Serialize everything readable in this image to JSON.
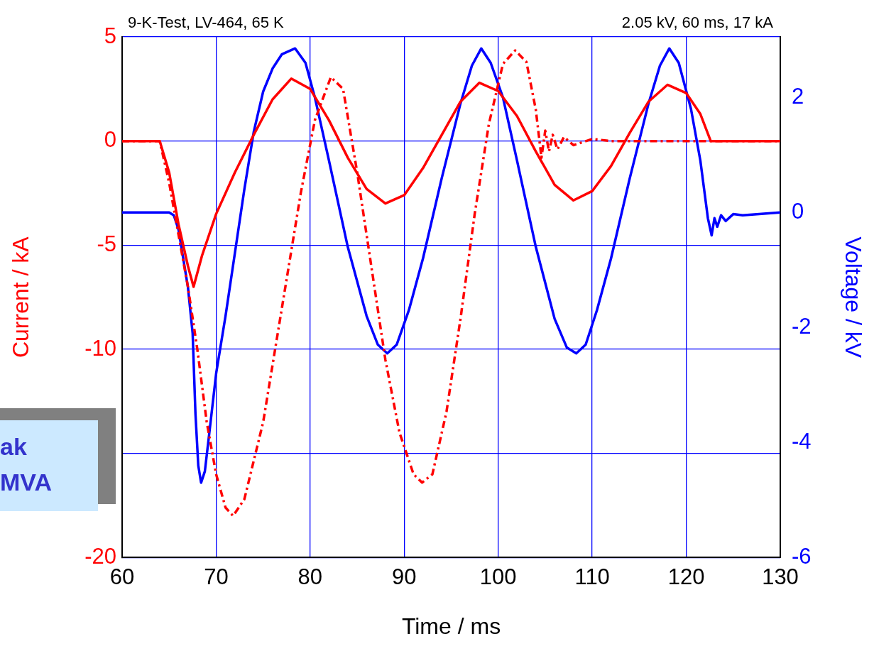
{
  "chart_data": {
    "type": "line",
    "title": "9-K-Test, LV-464, 65 K",
    "subtitle": "2.05 kV, 60 ms, 17 kA",
    "xlabel": "Time / ms",
    "ylabel": "Current / kA",
    "y2label": "Voltage / kV",
    "annotations": [
      "ak",
      "MVA"
    ],
    "xlim": [
      60,
      130
    ],
    "xticks": [
      60,
      70,
      80,
      90,
      100,
      110,
      120,
      130
    ],
    "ylim": [
      -20,
      5
    ],
    "yticks": [
      -20,
      {
        "value": -15,
        "label": null
      },
      -10,
      -5,
      0,
      5
    ],
    "y2lim": [
      -6,
      3.05
    ],
    "y2ticks": [
      -6,
      -4,
      -2,
      0,
      2
    ],
    "grid": true,
    "legend": false,
    "marker": "none",
    "series": [
      {
        "color": "#ff0000",
        "line_style": "solid",
        "x": [
          60,
          64,
          65,
          66,
          67,
          67.6,
          68.5,
          70,
          72,
          74,
          76,
          78,
          80,
          82,
          84,
          86,
          88,
          90,
          92,
          94,
          96,
          98,
          100,
          102,
          104,
          106,
          108,
          110,
          112,
          114,
          116,
          118,
          120,
          121.5,
          122.6,
          130
        ],
        "values": [
          0,
          0,
          -1.5,
          -4,
          -6,
          -7,
          -5.5,
          -3.5,
          -1.5,
          0.3,
          2,
          3,
          2.5,
          1,
          -0.8,
          -2.3,
          -3,
          -2.6,
          -1.3,
          0.3,
          1.9,
          2.8,
          2.4,
          1.2,
          -0.5,
          -2.1,
          -2.85,
          -2.4,
          -1.2,
          0.4,
          1.9,
          2.7,
          2.3,
          1.3,
          0,
          0
        ]
      },
      {
        "color": "#ff0000",
        "line_style": "dashed",
        "x": [
          60,
          64,
          65,
          66,
          67,
          68,
          69,
          70,
          71,
          71.8,
          73,
          75,
          77,
          79,
          80.5,
          82.2,
          83.5,
          85,
          86.5,
          88,
          89.5,
          91,
          91.9,
          93,
          94.5,
          96,
          97.5,
          99,
          100.5,
          101.8,
          103,
          104,
          104.6,
          105,
          105.4,
          105.8,
          106.3,
          107,
          108,
          110,
          112,
          130
        ],
        "values": [
          0,
          0,
          -2,
          -4.5,
          -7,
          -10,
          -13.5,
          -16,
          -17.6,
          -18,
          -17.2,
          -13.5,
          -8,
          -2.5,
          1,
          3.07,
          2.5,
          -1.5,
          -6,
          -10.5,
          -14,
          -16,
          -16.4,
          -16,
          -13,
          -8.5,
          -3.5,
          0.8,
          3.7,
          4.35,
          3.8,
          1.5,
          -0.8,
          0.5,
          -0.5,
          0.3,
          -0.4,
          0.2,
          -0.2,
          0.1,
          0,
          0
        ]
      },
      {
        "color": "#0000ff",
        "line_style": "solid",
        "axis": "y2",
        "x": [
          60,
          64,
          65,
          65.5,
          66,
          66.5,
          67,
          67.5,
          67.8,
          68.1,
          68.4,
          68.8,
          69.3,
          70,
          71,
          72,
          73,
          74,
          75,
          76,
          77,
          78.4,
          79.5,
          80.5,
          82,
          84,
          86,
          87.2,
          88.2,
          89.2,
          90.5,
          92,
          94,
          96,
          97.2,
          98.2,
          99.2,
          100.5,
          102,
          104,
          106,
          107.3,
          108.3,
          109.3,
          110.5,
          112,
          114,
          116,
          117.2,
          118.2,
          119.2,
          120.5,
          121.5,
          122.3,
          122.7,
          123,
          123.3,
          123.7,
          124.2,
          125,
          126,
          130
        ],
        "values": [
          0,
          0,
          0,
          -0.05,
          -0.3,
          -0.8,
          -1.3,
          -2.1,
          -3.5,
          -4.4,
          -4.7,
          -4.5,
          -3.8,
          -2.8,
          -1.8,
          -0.7,
          0.4,
          1.4,
          2.1,
          2.5,
          2.75,
          2.85,
          2.6,
          2,
          0.9,
          -0.6,
          -1.8,
          -2.3,
          -2.45,
          -2.3,
          -1.7,
          -0.8,
          0.6,
          1.9,
          2.55,
          2.85,
          2.6,
          2,
          0.9,
          -0.6,
          -1.85,
          -2.35,
          -2.45,
          -2.3,
          -1.7,
          -0.8,
          0.6,
          1.9,
          2.55,
          2.85,
          2.6,
          1.8,
          0.9,
          -0.1,
          -0.4,
          -0.1,
          -0.25,
          -0.05,
          -0.15,
          -0.03,
          -0.05,
          0
        ]
      }
    ]
  }
}
